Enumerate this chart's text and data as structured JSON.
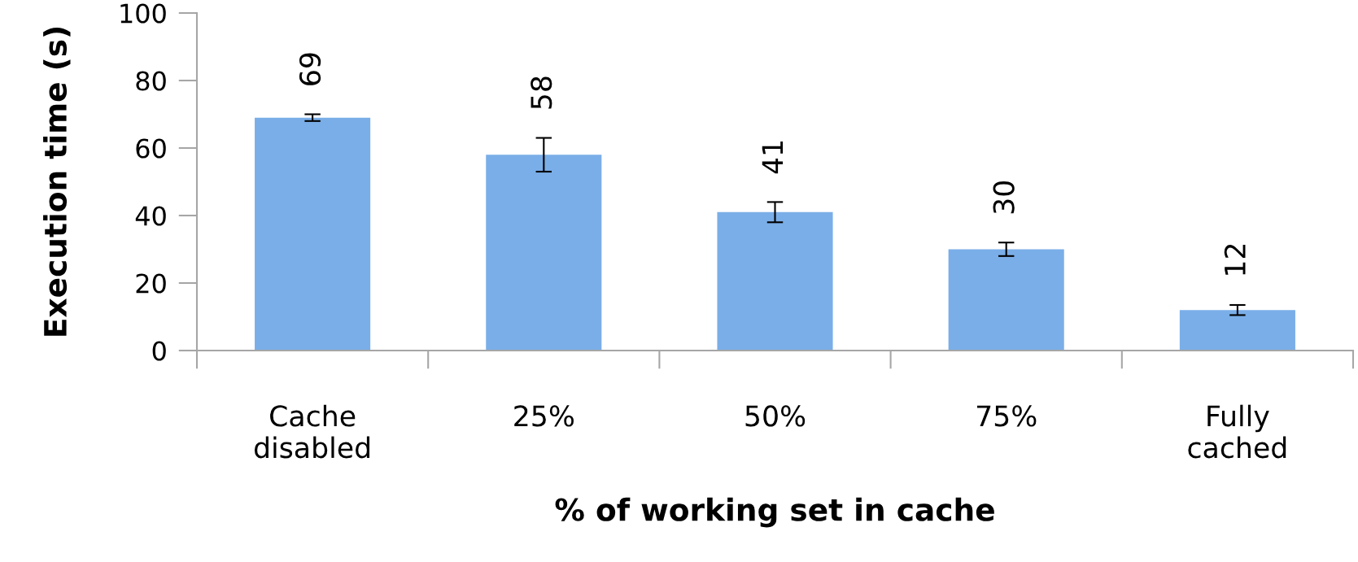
{
  "chart_data": {
    "type": "bar",
    "xlabel": "% of working set in cache",
    "ylabel": "Execution time (s)",
    "categories": [
      "Cache\ndisabled",
      "25%",
      "50%",
      "75%",
      "Fully\ncached"
    ],
    "values": [
      69,
      58,
      41,
      30,
      12
    ],
    "errors": [
      1,
      5,
      3,
      2,
      1.5
    ],
    "color": "#7aaee8",
    "ylim": [
      0,
      100
    ],
    "yticks": [
      0,
      20,
      40,
      60,
      80,
      100
    ],
    "data_labels": true,
    "grid": false,
    "legend": false
  }
}
